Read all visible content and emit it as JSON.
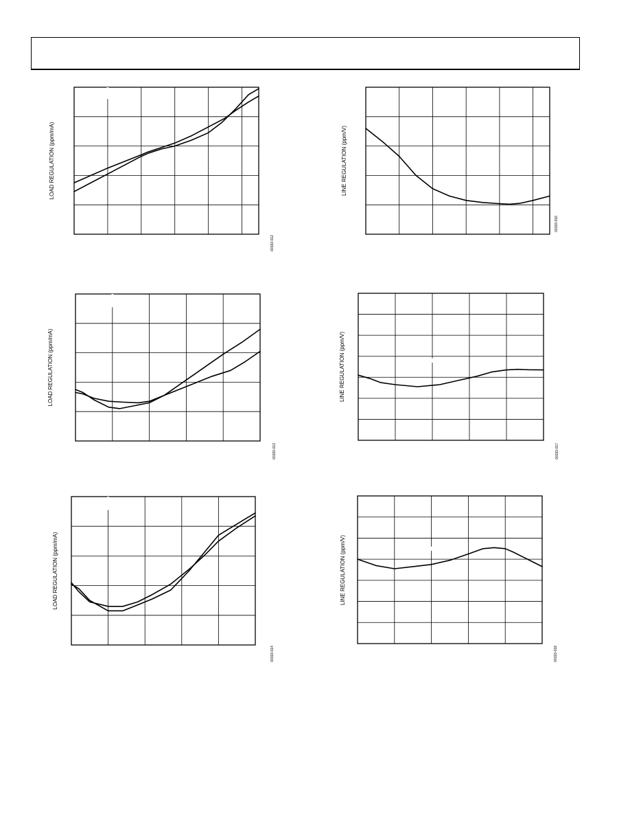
{
  "page": {
    "header_title": ""
  },
  "chart_data": [
    {
      "id": "c1",
      "type": "line",
      "ylabel": "LOAD REGULATION (ppm/mA)",
      "code": "00193-012",
      "xlim": [
        0,
        5.5
      ],
      "ylim": [
        0,
        5
      ],
      "xgrid": [
        1,
        2,
        3,
        4,
        5
      ],
      "ygrid": [
        1,
        2,
        3,
        4
      ],
      "stub": {
        "x": 1,
        "y0": 5,
        "y1": 4.6
      },
      "series": [
        {
          "x": [
            0,
            1,
            2,
            2.2,
            2.6,
            3,
            3.5,
            4,
            4.4,
            4.8,
            5.2,
            5.5
          ],
          "y": [
            1.45,
            2.05,
            2.65,
            2.75,
            2.9,
            3.0,
            3.2,
            3.45,
            3.8,
            4.25,
            4.75,
            4.95
          ]
        },
        {
          "x": [
            0,
            1,
            2,
            2.2,
            2.6,
            3,
            3.5,
            4,
            4.5,
            4.8,
            5.2,
            5.5
          ],
          "y": [
            1.75,
            2.25,
            2.7,
            2.8,
            2.95,
            3.1,
            3.35,
            3.65,
            3.95,
            4.2,
            4.5,
            4.7
          ]
        }
      ]
    },
    {
      "id": "c2",
      "type": "line",
      "ylabel": "LINE REGULATION (ppm/V)",
      "code": "00193-016",
      "xlim": [
        0,
        5.5
      ],
      "ylim": [
        0,
        5
      ],
      "xgrid": [
        1,
        2,
        3,
        4,
        5
      ],
      "ygrid": [
        1,
        2,
        3,
        4
      ],
      "stub": null,
      "series": [
        {
          "x": [
            0,
            0.5,
            1,
            1.5,
            2,
            2.5,
            3,
            3.5,
            4,
            4.3,
            4.6,
            5,
            5.5
          ],
          "y": [
            3.6,
            3.15,
            2.65,
            2.0,
            1.55,
            1.3,
            1.15,
            1.08,
            1.04,
            1.02,
            1.05,
            1.15,
            1.3
          ]
        }
      ]
    },
    {
      "id": "c3",
      "type": "line",
      "ylabel": "LOAD REGULATION (ppm/mA)",
      "code": "00193-013",
      "xlim": [
        0,
        5
      ],
      "ylim": [
        0,
        5
      ],
      "xgrid": [
        1,
        2,
        3,
        4
      ],
      "ygrid": [
        1,
        2,
        3,
        4
      ],
      "stub": {
        "x": 1,
        "y0": 5,
        "y1": 4.55
      },
      "series": [
        {
          "x": [
            0,
            0.2,
            0.5,
            0.9,
            1.2,
            1.6,
            2,
            2.4,
            2.8,
            3.2,
            3.6,
            4,
            4.5,
            5
          ],
          "y": [
            1.75,
            1.65,
            1.4,
            1.15,
            1.1,
            1.2,
            1.3,
            1.55,
            1.9,
            2.25,
            2.6,
            2.95,
            3.35,
            3.8
          ]
        },
        {
          "x": [
            0,
            0.2,
            0.5,
            0.9,
            1.3,
            1.7,
            2,
            2.5,
            2.9,
            3.3,
            3.7,
            4.2,
            4.6,
            5
          ],
          "y": [
            1.65,
            1.6,
            1.45,
            1.35,
            1.32,
            1.3,
            1.35,
            1.6,
            1.8,
            2.0,
            2.2,
            2.4,
            2.7,
            3.05
          ]
        }
      ]
    },
    {
      "id": "c4",
      "type": "line",
      "ylabel": "LINE REGULATION (ppm/V)",
      "code": "00193-017",
      "xlim": [
        0,
        5
      ],
      "ylim": [
        0,
        7
      ],
      "xgrid": [
        1,
        2,
        3,
        4
      ],
      "ygrid": [
        1,
        2,
        3,
        4,
        5,
        6
      ],
      "stub": {
        "x": 2,
        "y0": 3.7,
        "y1": 3.9
      },
      "series": [
        {
          "x": [
            0,
            0.3,
            0.6,
            1,
            1.6,
            2.2,
            2.7,
            3.2,
            3.6,
            4,
            4.3,
            4.6,
            5
          ],
          "y": [
            3.1,
            2.95,
            2.75,
            2.65,
            2.55,
            2.65,
            2.85,
            3.05,
            3.25,
            3.35,
            3.38,
            3.36,
            3.35
          ]
        }
      ]
    },
    {
      "id": "c5",
      "type": "line",
      "ylabel": "LOAD REGULATION (ppm/mA)",
      "code": "00193-014",
      "xlim": [
        0,
        5
      ],
      "ylim": [
        0,
        5
      ],
      "xgrid": [
        1,
        2,
        3,
        4
      ],
      "ygrid": [
        1,
        2,
        3,
        4
      ],
      "stub": {
        "x": 1,
        "y0": 5,
        "y1": 4.55
      },
      "series": [
        {
          "x": [
            0,
            0.2,
            0.5,
            1,
            1.4,
            1.8,
            2.2,
            2.7,
            3.2,
            3.6,
            4,
            4.5,
            5
          ],
          "y": [
            2.1,
            1.8,
            1.45,
            1.3,
            1.3,
            1.45,
            1.7,
            2.05,
            2.55,
            3.0,
            3.5,
            3.95,
            4.35
          ]
        },
        {
          "x": [
            0,
            0.2,
            0.5,
            1,
            1.4,
            1.8,
            2.2,
            2.7,
            3.2,
            3.6,
            4,
            4.4,
            4.8,
            5
          ],
          "y": [
            2.05,
            1.9,
            1.5,
            1.15,
            1.15,
            1.35,
            1.55,
            1.85,
            2.5,
            3.1,
            3.7,
            4.0,
            4.3,
            4.45
          ]
        }
      ]
    },
    {
      "id": "c6",
      "type": "line",
      "ylabel": "LINE REGULATION (ppm/V)",
      "code": "00193-018",
      "xlim": [
        0,
        5
      ],
      "ylim": [
        0,
        7
      ],
      "xgrid": [
        1,
        2,
        3,
        4
      ],
      "ygrid": [
        1,
        2,
        3,
        4,
        5,
        6
      ],
      "stub": {
        "x": 2,
        "y0": 4.6,
        "y1": 4.4
      },
      "series": [
        {
          "x": [
            0,
            0.5,
            1,
            1.5,
            2,
            2.5,
            3,
            3.4,
            3.7,
            4,
            4.2,
            4.6,
            5
          ],
          "y": [
            4.0,
            3.7,
            3.55,
            3.65,
            3.75,
            3.95,
            4.25,
            4.5,
            4.55,
            4.5,
            4.35,
            4.0,
            3.65
          ]
        }
      ]
    }
  ]
}
